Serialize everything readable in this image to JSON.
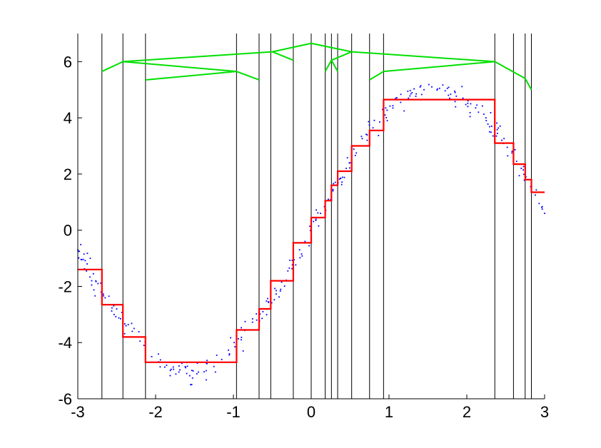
{
  "chart_data": {
    "type": "line",
    "title": "",
    "xlabel": "",
    "ylabel": "",
    "xlim": [
      -3,
      3
    ],
    "ylim": [
      -6,
      7
    ],
    "grid": false,
    "legend": "none",
    "x_ticks": [
      -3,
      -2,
      -1,
      0,
      1,
      2,
      3
    ],
    "x_tick_labels": [
      "-3",
      "-2",
      "-1",
      "0",
      "1",
      "2",
      "3"
    ],
    "y_ticks": [
      -6,
      -4,
      -2,
      0,
      2,
      4,
      6
    ],
    "y_tick_labels": [
      "-6",
      "-4",
      "-2",
      "0",
      "2",
      "4",
      "6"
    ],
    "vertical_lines": [
      -2.69,
      -2.42,
      -2.13,
      -0.96,
      -0.67,
      -0.52,
      -0.23,
      0.0,
      0.18,
      0.26,
      0.34,
      0.52,
      0.75,
      0.93,
      2.36,
      2.6,
      2.75,
      2.83
    ],
    "series": [
      {
        "kind": "step",
        "color": "#ff0000",
        "points": [
          [
            -3.0,
            -1.4
          ],
          [
            -2.69,
            -1.4
          ],
          [
            -2.69,
            -2.65
          ],
          [
            -2.42,
            -2.65
          ],
          [
            -2.42,
            -3.8
          ],
          [
            -2.13,
            -3.8
          ],
          [
            -2.13,
            -4.7
          ],
          [
            -0.96,
            -4.7
          ],
          [
            -0.96,
            -3.55
          ],
          [
            -0.67,
            -3.55
          ],
          [
            -0.67,
            -2.8
          ],
          [
            -0.52,
            -2.8
          ],
          [
            -0.52,
            -1.8
          ],
          [
            -0.23,
            -1.8
          ],
          [
            -0.23,
            -0.45
          ],
          [
            0.0,
            -0.45
          ],
          [
            0.0,
            0.45
          ],
          [
            0.18,
            0.45
          ],
          [
            0.18,
            1.05
          ],
          [
            0.26,
            1.05
          ],
          [
            0.26,
            1.6
          ],
          [
            0.34,
            1.6
          ],
          [
            0.34,
            2.1
          ],
          [
            0.52,
            2.1
          ],
          [
            0.52,
            3.0
          ],
          [
            0.75,
            3.0
          ],
          [
            0.75,
            3.55
          ],
          [
            0.93,
            3.55
          ],
          [
            0.93,
            4.65
          ],
          [
            2.36,
            4.65
          ],
          [
            2.36,
            3.1
          ],
          [
            2.6,
            3.1
          ],
          [
            2.6,
            2.35
          ],
          [
            2.75,
            2.35
          ],
          [
            2.75,
            1.8
          ],
          [
            2.83,
            1.8
          ],
          [
            2.83,
            1.35
          ],
          [
            3.0,
            1.35
          ]
        ]
      },
      {
        "kind": "scatter",
        "color": "#0000ff",
        "noise_sd": 0.2,
        "n_points": 300,
        "underlying": "5*sin(x)",
        "points": [
          [
            -2.98,
            -0.75
          ],
          [
            -2.95,
            -1.05
          ],
          [
            -2.92,
            -0.85
          ],
          [
            -2.88,
            -1.2
          ],
          [
            -2.84,
            -1.0
          ],
          [
            -2.8,
            -1.55
          ],
          [
            -2.74,
            -1.9
          ],
          [
            -2.7,
            -2.2
          ],
          [
            -2.6,
            -2.35
          ],
          [
            -2.5,
            -2.8
          ],
          [
            -2.45,
            -3.15
          ],
          [
            -2.38,
            -3.4
          ],
          [
            -2.3,
            -3.6
          ],
          [
            -2.2,
            -3.95
          ],
          [
            -2.15,
            -4.1
          ],
          [
            -2.05,
            -4.5
          ],
          [
            -1.95,
            -4.7
          ],
          [
            -1.8,
            -4.95
          ],
          [
            -1.7,
            -5.05
          ],
          [
            -1.6,
            -5.1
          ],
          [
            -1.55,
            -5.5
          ],
          [
            -1.45,
            -5.05
          ],
          [
            -1.35,
            -5.0
          ],
          [
            -1.25,
            -4.85
          ],
          [
            -1.15,
            -4.6
          ],
          [
            -1.05,
            -4.4
          ],
          [
            -0.98,
            -4.15
          ],
          [
            -0.9,
            -3.9
          ],
          [
            -0.8,
            -3.55
          ],
          [
            -0.7,
            -3.2
          ],
          [
            -0.62,
            -2.9
          ],
          [
            -0.55,
            -2.55
          ],
          [
            -0.45,
            -2.15
          ],
          [
            -0.38,
            -1.85
          ],
          [
            -0.3,
            -1.45
          ],
          [
            -0.22,
            -1.05
          ],
          [
            -0.15,
            -0.7
          ],
          [
            -0.08,
            -0.4
          ],
          [
            0.0,
            0.05
          ],
          [
            0.06,
            0.35
          ],
          [
            0.12,
            0.6
          ],
          [
            0.18,
            0.95
          ],
          [
            0.22,
            1.1
          ],
          [
            0.28,
            1.4
          ],
          [
            0.32,
            1.6
          ],
          [
            0.38,
            1.85
          ],
          [
            0.45,
            2.2
          ],
          [
            0.5,
            2.4
          ],
          [
            0.58,
            2.75
          ],
          [
            0.65,
            3.0
          ],
          [
            0.72,
            3.2
          ],
          [
            0.8,
            3.55
          ],
          [
            0.88,
            3.85
          ],
          [
            0.95,
            4.1
          ],
          [
            1.05,
            4.35
          ],
          [
            1.15,
            4.55
          ],
          [
            1.25,
            4.7
          ],
          [
            1.35,
            4.85
          ],
          [
            1.45,
            5.0
          ],
          [
            1.55,
            5.1
          ],
          [
            1.65,
            5.05
          ],
          [
            1.75,
            5.05
          ],
          [
            1.85,
            4.9
          ],
          [
            1.95,
            4.7
          ],
          [
            2.05,
            4.5
          ],
          [
            2.15,
            4.2
          ],
          [
            2.25,
            3.9
          ],
          [
            2.32,
            3.7
          ],
          [
            2.38,
            3.35
          ],
          [
            2.45,
            3.2
          ],
          [
            2.52,
            2.95
          ],
          [
            2.58,
            2.75
          ],
          [
            2.64,
            2.45
          ],
          [
            2.7,
            2.2
          ],
          [
            2.76,
            1.9
          ],
          [
            2.82,
            1.55
          ],
          [
            2.88,
            1.25
          ],
          [
            2.93,
            0.95
          ],
          [
            2.97,
            0.75
          ],
          [
            3.0,
            0.6
          ]
        ]
      },
      {
        "kind": "tree",
        "color": "#00e000",
        "segments": [
          [
            [
              -0.5,
              6.35
            ],
            [
              0.0,
              6.65
            ]
          ],
          [
            [
              0.0,
              6.65
            ],
            [
              0.52,
              6.35
            ]
          ],
          [
            [
              -0.5,
              6.35
            ],
            [
              -2.42,
              6.0
            ]
          ],
          [
            [
              -0.5,
              6.35
            ],
            [
              -0.23,
              6.05
            ]
          ],
          [
            [
              -2.42,
              6.0
            ],
            [
              -2.69,
              5.65
            ]
          ],
          [
            [
              -2.42,
              6.0
            ],
            [
              -0.96,
              5.65
            ]
          ],
          [
            [
              -0.96,
              5.65
            ],
            [
              -2.13,
              5.35
            ]
          ],
          [
            [
              -0.96,
              5.65
            ],
            [
              -0.67,
              5.35
            ]
          ],
          [
            [
              0.52,
              6.35
            ],
            [
              0.26,
              6.05
            ]
          ],
          [
            [
              0.52,
              6.35
            ],
            [
              2.36,
              6.0
            ]
          ],
          [
            [
              0.26,
              6.05
            ],
            [
              0.18,
              5.65
            ]
          ],
          [
            [
              0.26,
              6.05
            ],
            [
              0.34,
              5.65
            ]
          ],
          [
            [
              2.36,
              6.0
            ],
            [
              0.93,
              5.65
            ]
          ],
          [
            [
              2.36,
              6.0
            ],
            [
              2.75,
              5.4
            ]
          ],
          [
            [
              0.93,
              5.65
            ],
            [
              0.75,
              5.35
            ]
          ],
          [
            [
              2.75,
              5.4
            ],
            [
              2.83,
              5.0
            ]
          ]
        ]
      }
    ]
  }
}
